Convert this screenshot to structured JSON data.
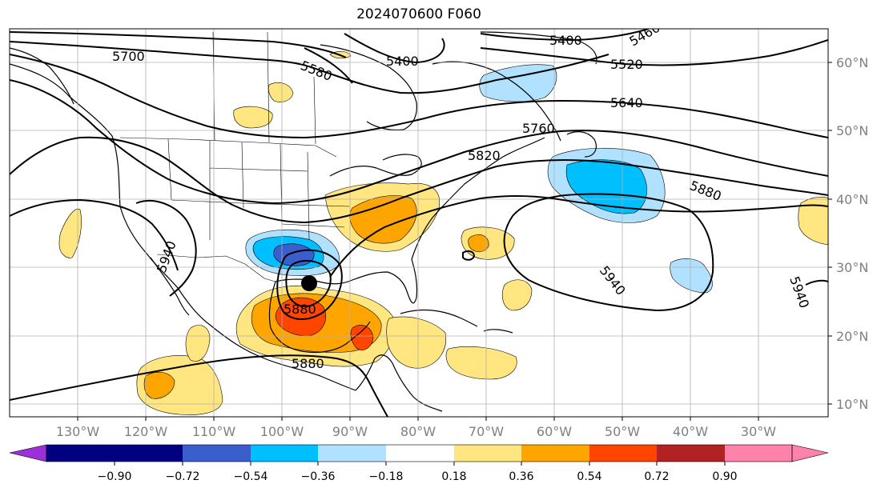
{
  "title": "2024070600 F060",
  "map": {
    "lon_range": [
      -140,
      -20
    ],
    "lat_range": [
      8,
      65
    ],
    "lon_ticks": [
      "130°W",
      "120°W",
      "110°W",
      "100°W",
      "90°W",
      "80°W",
      "70°W",
      "60°W",
      "50°W",
      "40°W",
      "30°W"
    ],
    "lat_ticks": [
      "60°N",
      "50°N",
      "40°N",
      "30°N",
      "20°N",
      "10°N"
    ],
    "grid": true,
    "contour_labels": [
      "5700",
      "5580",
      "5400",
      "5400",
      "5460",
      "5520",
      "5640",
      "5760",
      "5820",
      "5880",
      "5940",
      "5940",
      "5880",
      "5880",
      "5940"
    ],
    "marker": {
      "name": "storm-center",
      "lon": -96,
      "lat": 27.5
    }
  },
  "colorbar": {
    "ticks": [
      "−0.90",
      "−0.72",
      "−0.54",
      "−0.36",
      "−0.18",
      "0.18",
      "0.36",
      "0.54",
      "0.72",
      "0.90"
    ],
    "colors": [
      "#9b30d8",
      "#000080",
      "#3a5fcd",
      "#00bfff",
      "#b0e2ff",
      "#ffffff",
      "#ffe680",
      "#ffa500",
      "#ff4500",
      "#b22222",
      "#ff82ab"
    ],
    "extend": "both"
  }
}
